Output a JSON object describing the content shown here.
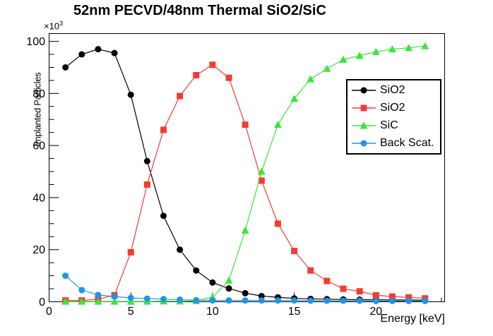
{
  "title": "52nm PECVD/48nm Thermal SiO2/SiC",
  "y_exponent": {
    "base": "×10",
    "exp": "3"
  },
  "chart_data": {
    "type": "line",
    "title": "52nm PECVD/48nm Thermal SiO2/SiC",
    "xlabel": "Energy [keV]",
    "ylabel": "Implanted Particles",
    "y_axis_multiplier": "×10³",
    "xlim": [
      0,
      24.2
    ],
    "ylim": [
      0,
      103
    ],
    "x_major_ticks": [
      0,
      5,
      10,
      15,
      20
    ],
    "x_minor_step": 1,
    "y_major_ticks": [
      0,
      20,
      40,
      60,
      80,
      100
    ],
    "y_minor_step": 5,
    "grid": false,
    "legend_position": "middle-right",
    "x": [
      1,
      2,
      3,
      4,
      5,
      6,
      7,
      8,
      9,
      10,
      11,
      12,
      13,
      14,
      15,
      16,
      17,
      18,
      19,
      20,
      21,
      22,
      23
    ],
    "series": [
      {
        "name": "SiO2",
        "marker": "circle",
        "color": "#000000",
        "values": [
          90,
          95,
          97,
          95.5,
          79.5,
          54,
          33,
          20,
          12,
          7.4,
          5.1,
          3.3,
          2.2,
          1.7,
          1.3,
          1.1,
          1.0,
          0.9,
          0.8,
          0.8,
          0.7,
          0.7,
          0.6
        ]
      },
      {
        "name": "SiO2",
        "marker": "square",
        "color": "#f43b30",
        "values": [
          0.5,
          0.5,
          1,
          2.5,
          19,
          45,
          66,
          79,
          87,
          91,
          86,
          68,
          46.5,
          30,
          19.5,
          12,
          8,
          5,
          4,
          2.5,
          2,
          1.7,
          1.3
        ]
      },
      {
        "name": "SiC",
        "marker": "triangle",
        "color": "#39e639",
        "values": [
          0.1,
          0.1,
          0.1,
          0.1,
          0.1,
          0.1,
          0.2,
          0.2,
          0.3,
          1.8,
          8.2,
          27.4,
          50,
          68,
          78,
          85.5,
          89.5,
          93,
          94.5,
          96,
          97,
          97.5,
          98.2
        ]
      },
      {
        "name": "Back Scat.",
        "marker": "circle",
        "color": "#1e96e8",
        "values": [
          10,
          4.5,
          2.6,
          2,
          1.5,
          1.2,
          1,
          0.8,
          0.6,
          0.5,
          0.5,
          0.5,
          0.5,
          0.5,
          0.5,
          0.4,
          0.4,
          0.4,
          0.4,
          0.3,
          0.3,
          0.3,
          0.3
        ]
      }
    ]
  }
}
